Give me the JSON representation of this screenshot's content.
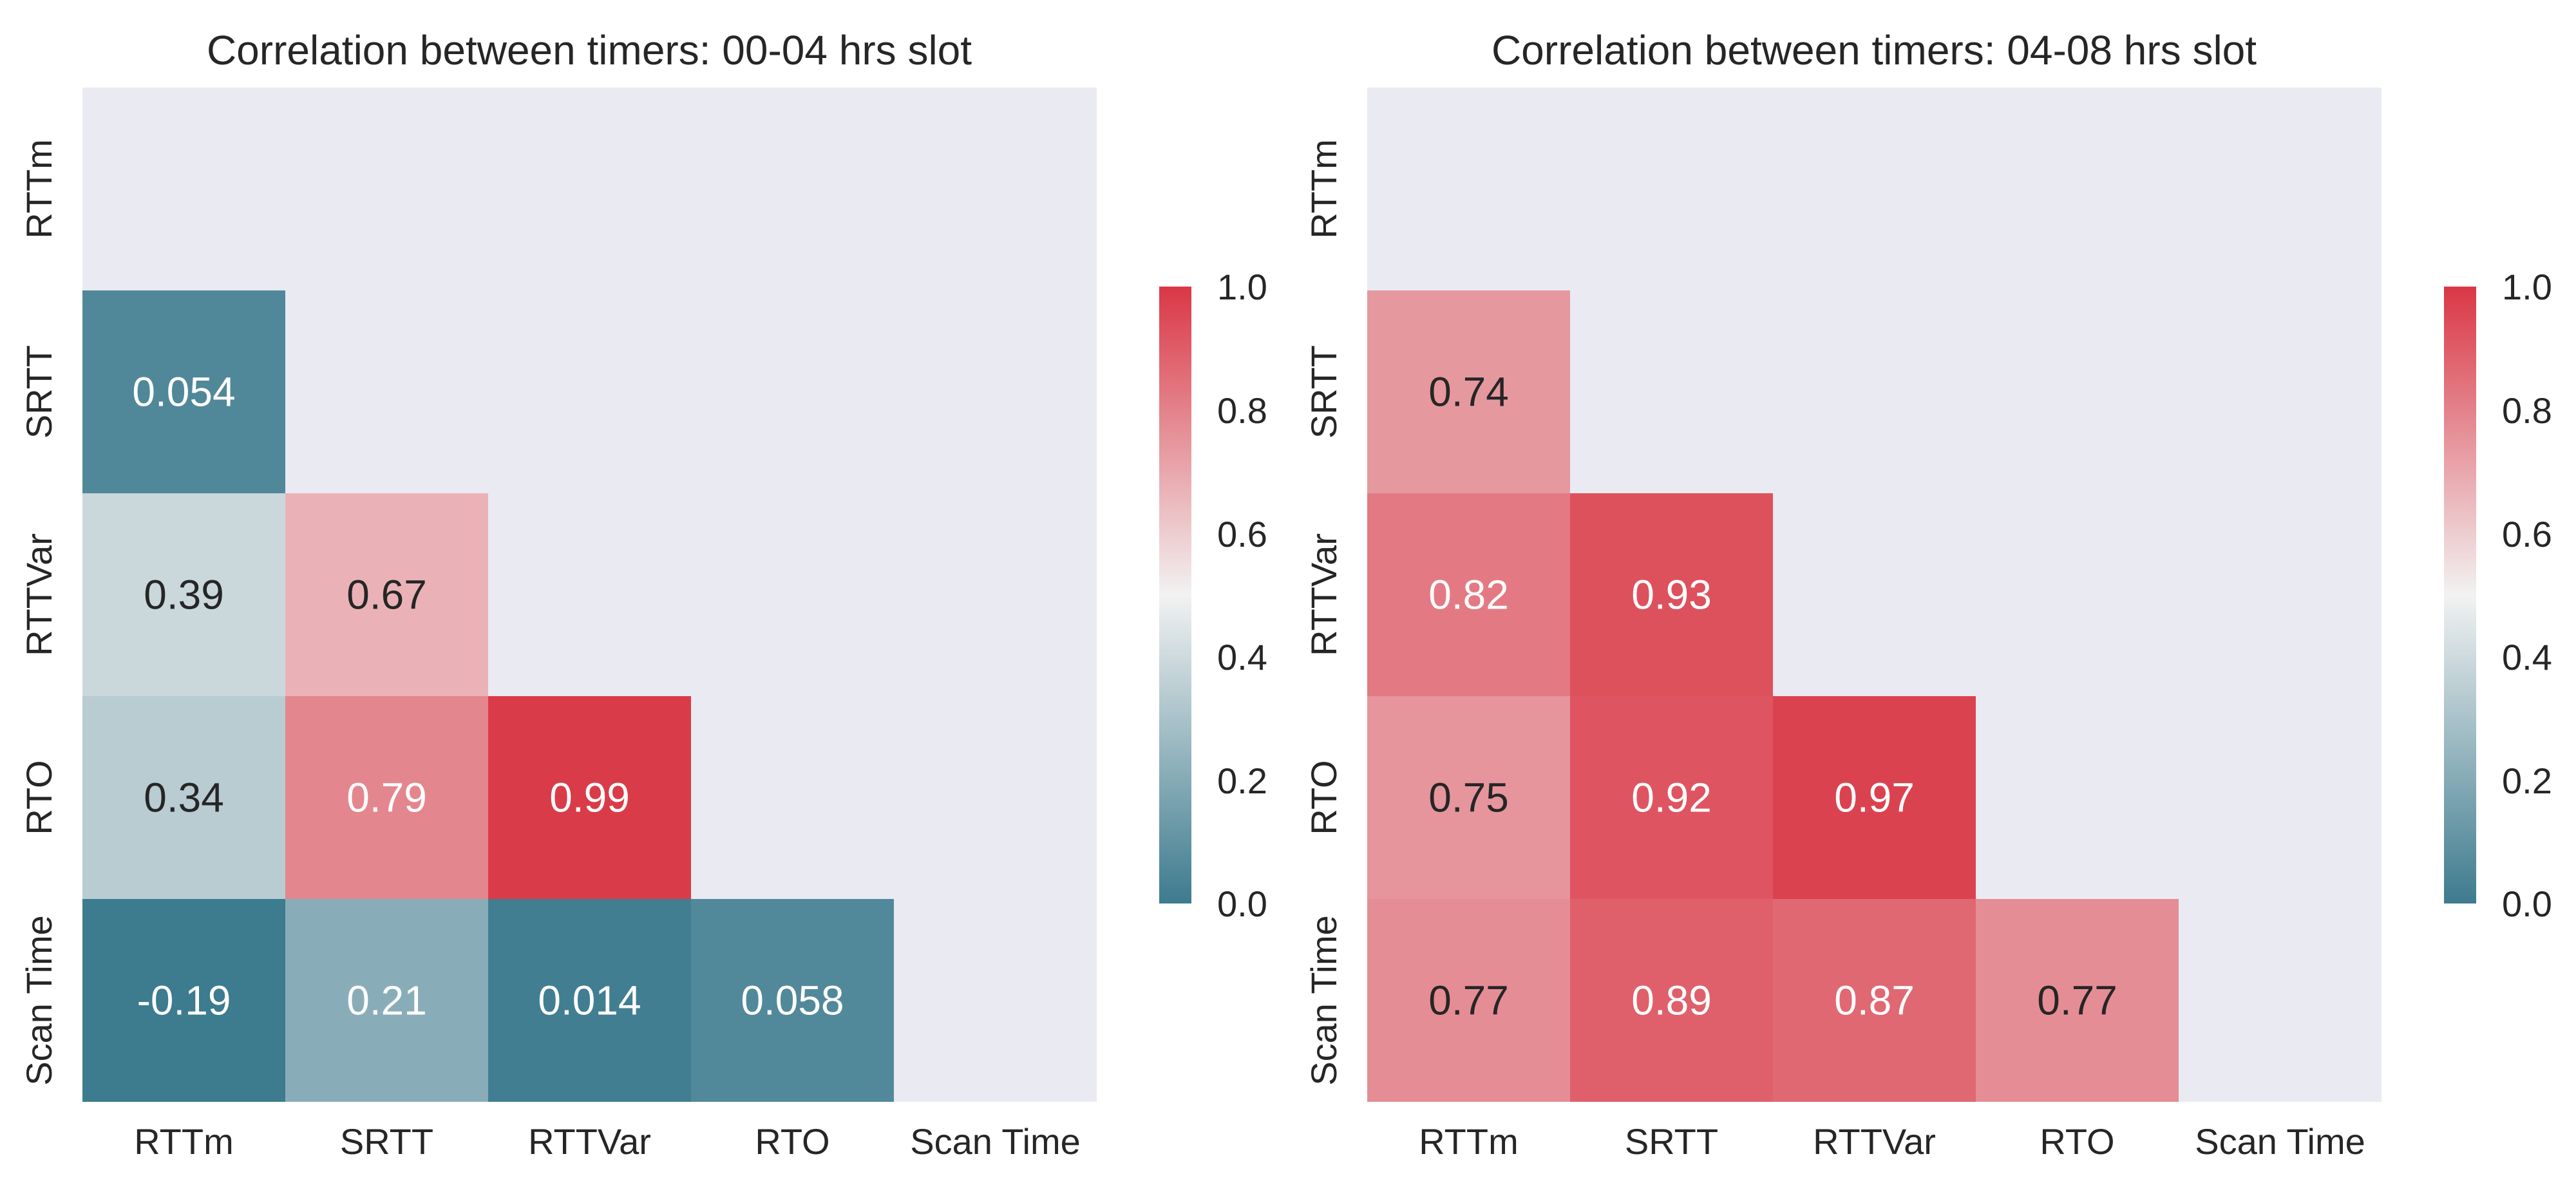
{
  "chart_data": [
    {
      "type": "heatmap",
      "title": "Correlation between timers: 00-04 hrs slot",
      "row_labels": [
        "RTTm",
        "SRTT",
        "RTTVar",
        "RTO",
        "Scan Time"
      ],
      "col_labels": [
        "RTTm",
        "SRTT",
        "RTTVar",
        "RTO",
        "Scan Time"
      ],
      "mask": "upper-triangle-including-diagonal",
      "values": [
        [
          null,
          null,
          null,
          null,
          null
        ],
        [
          0.054,
          null,
          null,
          null,
          null
        ],
        [
          0.39,
          0.67,
          null,
          null,
          null
        ],
        [
          0.34,
          0.79,
          0.99,
          null,
          null
        ],
        [
          -0.19,
          0.21,
          0.014,
          0.058,
          null
        ]
      ],
      "cell_labels": [
        [
          null,
          null,
          null,
          null,
          null
        ],
        [
          "0.054",
          null,
          null,
          null,
          null
        ],
        [
          "0.39",
          "0.67",
          null,
          null,
          null
        ],
        [
          "0.34",
          "0.79",
          "0.99",
          null,
          null
        ],
        [
          "-0.19",
          "0.21",
          "0.014",
          "0.058",
          null
        ]
      ],
      "colorbar": {
        "vmin": 0.0,
        "vmax": 1.0,
        "ticks": [
          "0.0",
          "0.2",
          "0.4",
          "0.6",
          "0.8",
          "1.0"
        ]
      },
      "xlabel": "",
      "ylabel": "",
      "grid": false
    },
    {
      "type": "heatmap",
      "title": "Correlation between timers: 04-08 hrs slot",
      "row_labels": [
        "RTTm",
        "SRTT",
        "RTTVar",
        "RTO",
        "Scan Time"
      ],
      "col_labels": [
        "RTTm",
        "SRTT",
        "RTTVar",
        "RTO",
        "Scan Time"
      ],
      "mask": "upper-triangle-including-diagonal",
      "values": [
        [
          null,
          null,
          null,
          null,
          null
        ],
        [
          0.74,
          null,
          null,
          null,
          null
        ],
        [
          0.82,
          0.93,
          null,
          null,
          null
        ],
        [
          0.75,
          0.92,
          0.97,
          null,
          null
        ],
        [
          0.77,
          0.89,
          0.87,
          0.77,
          null
        ]
      ],
      "cell_labels": [
        [
          null,
          null,
          null,
          null,
          null
        ],
        [
          "0.74",
          null,
          null,
          null,
          null
        ],
        [
          "0.82",
          "0.93",
          null,
          null,
          null
        ],
        [
          "0.75",
          "0.92",
          "0.97",
          null,
          null
        ],
        [
          "0.77",
          "0.89",
          "0.87",
          "0.77",
          null
        ]
      ],
      "colorbar": {
        "vmin": 0.0,
        "vmax": 1.0,
        "ticks": [
          "0.0",
          "0.2",
          "0.4",
          "0.6",
          "0.8",
          "1.0"
        ]
      },
      "xlabel": "",
      "ylabel": "",
      "grid": false
    }
  ],
  "colors": {
    "mask_background": "#eaeaf2",
    "low": "#3d7b8e",
    "mid": "#f2f2f2",
    "high": "#da3745",
    "dark_text": "#262626",
    "light_text": "#ffffff"
  }
}
